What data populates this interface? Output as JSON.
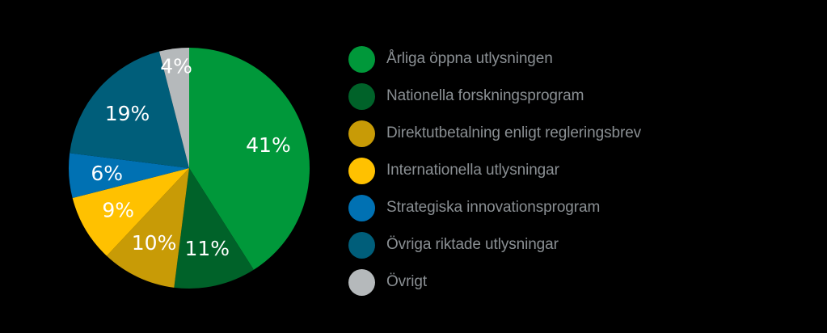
{
  "chart_data": {
    "type": "pie",
    "slices": [
      {
        "label": "Årliga öppna utlysningen",
        "value": 41,
        "value_label": "41%",
        "color": "#00983a"
      },
      {
        "label": "Nationella forskningsprogram",
        "value": 11,
        "value_label": "11%",
        "color": "#006229"
      },
      {
        "label": "Direktutbetalning enligt regleringsbrev",
        "value": 10,
        "value_label": "10%",
        "color": "#c89b06"
      },
      {
        "label": "Internationella utlysningar",
        "value": 9,
        "value_label": "9%",
        "color": "#ffc100"
      },
      {
        "label": "Strategiska innovationsprogram",
        "value": 6,
        "value_label": "6%",
        "color": "#0071b3"
      },
      {
        "label": "Övriga riktade utlysningar",
        "value": 19,
        "value_label": "19%",
        "color": "#005e7a"
      },
      {
        "label": "Övrigt",
        "value": 4,
        "value_label": "4%",
        "color": "#b5b9bb"
      }
    ],
    "start": "12 o'clock",
    "direction": "clockwise",
    "legend_position": "right"
  }
}
